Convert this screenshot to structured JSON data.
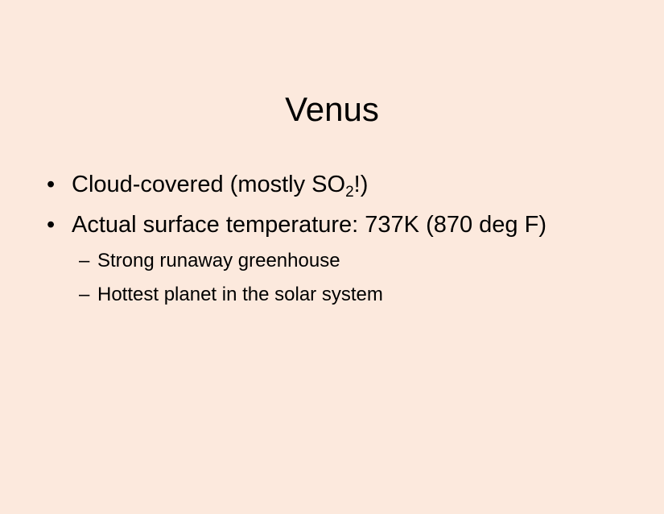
{
  "slide": {
    "title": "Venus",
    "bullets": [
      {
        "marker": "•",
        "text_before": "Cloud-covered (mostly SO",
        "subscript": "2",
        "text_after": "!)"
      },
      {
        "marker": "•",
        "text": "Actual surface temperature: 737K (870 deg F)"
      }
    ],
    "subbullets": [
      {
        "marker": "–",
        "text": "Strong runaway greenhouse"
      },
      {
        "marker": "–",
        "text": "Hottest planet in the solar system"
      }
    ]
  },
  "colors": {
    "background": "#FCE9DD",
    "text": "#000000"
  }
}
